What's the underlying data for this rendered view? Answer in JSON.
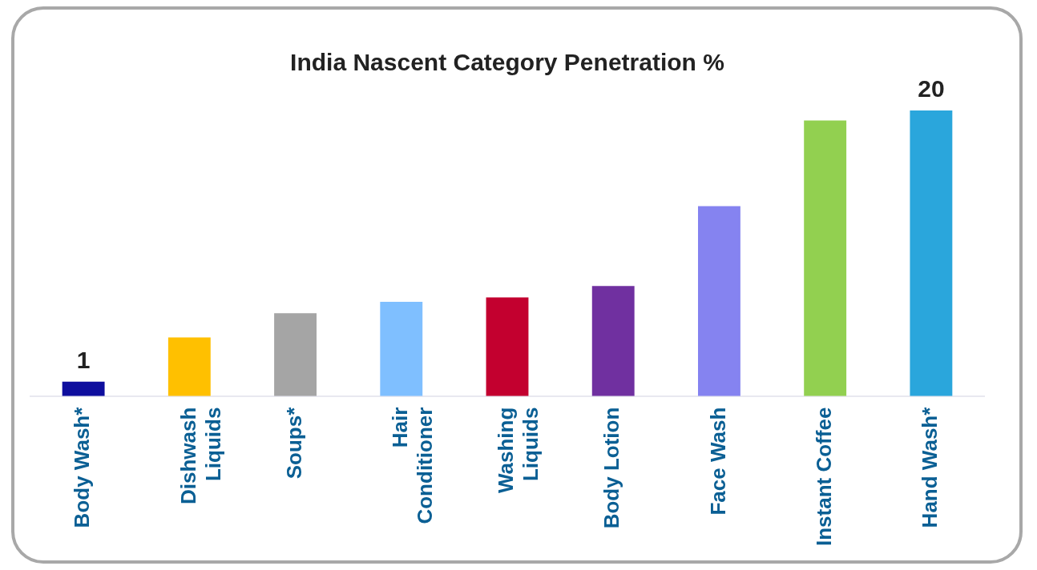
{
  "chart_data": {
    "type": "bar",
    "title": "India Nascent Category Penetration %",
    "categories": [
      "Body Wash*",
      "Dishwash\nLiquids",
      "Soups*",
      "Hair\nConditioner",
      "Washing\nLiquids",
      "Body Lotion",
      "Face Wash",
      "Instant Coffee",
      "Hand Wash*"
    ],
    "values": [
      1,
      4.1,
      5.8,
      6.6,
      6.9,
      7.7,
      13.3,
      19.3,
      20
    ],
    "colors": [
      "#0e0e9e",
      "#ffc000",
      "#a5a5a5",
      "#7fbfff",
      "#c3002f",
      "#7030a0",
      "#8583f0",
      "#92d050",
      "#2aa6dc"
    ],
    "value_labels": [
      "1",
      null,
      null,
      null,
      null,
      null,
      null,
      null,
      "20"
    ],
    "grid": false,
    "legend": false
  }
}
